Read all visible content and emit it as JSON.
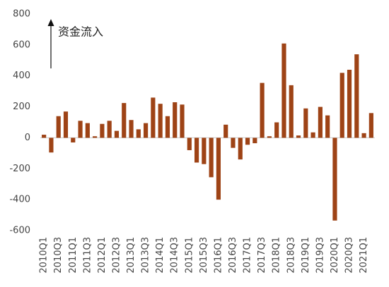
{
  "chart_data": {
    "type": "bar",
    "annotation": "资金流入",
    "categories": [
      "2010Q1",
      null,
      "2010Q3",
      null,
      "2011Q1",
      null,
      "2011Q3",
      null,
      "2012Q1",
      null,
      "2012Q3",
      null,
      "2013Q1",
      null,
      "2013Q3",
      null,
      "2014Q1",
      null,
      "2014Q3",
      null,
      "2015Q1",
      null,
      "2015Q3",
      null,
      "2016Q1",
      null,
      "2016Q3",
      null,
      "2017Q1",
      null,
      "2017Q3",
      null,
      "2018Q1",
      null,
      "2018Q3",
      null,
      "2019Q1",
      null,
      "2019Q3",
      null,
      "2020Q1",
      null,
      "2020Q3",
      null,
      "2021Q1",
      null
    ],
    "values": [
      20,
      -95,
      140,
      170,
      -30,
      110,
      95,
      10,
      90,
      110,
      45,
      225,
      115,
      55,
      95,
      260,
      220,
      140,
      230,
      215,
      -80,
      -160,
      -170,
      -255,
      -400,
      85,
      -65,
      -140,
      -45,
      -35,
      355,
      10,
      100,
      610,
      340,
      15,
      190,
      35,
      200,
      145,
      -535,
      420,
      440,
      540,
      30,
      160
    ],
    "color": "#9e4316",
    "ylim": [
      -600,
      800
    ],
    "yticks": [
      -600,
      -400,
      -200,
      0,
      200,
      400,
      600,
      800
    ],
    "grid": false
  }
}
